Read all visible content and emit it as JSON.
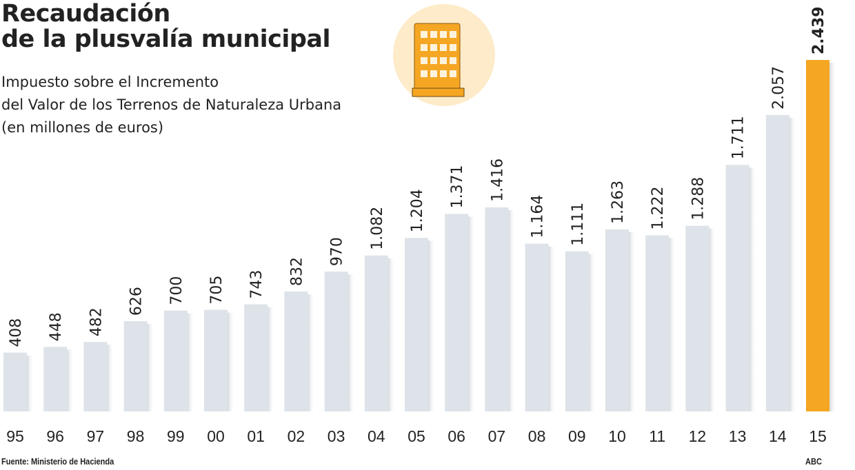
{
  "chart_data": {
    "type": "bar",
    "title": "Recaudación de la plusvalía municipal",
    "title_lines": [
      "Recaudación",
      "de la plusvalía municipal"
    ],
    "subtitle_lines": [
      "Impuesto sobre el Incremento",
      "del Valor de los Terrenos de Naturaleza Urbana",
      "(en millones de euros)"
    ],
    "categories": [
      "95",
      "96",
      "97",
      "98",
      "99",
      "00",
      "01",
      "02",
      "03",
      "04",
      "05",
      "06",
      "07",
      "08",
      "09",
      "10",
      "11",
      "12",
      "13",
      "14",
      "15"
    ],
    "values": [
      408,
      448,
      482,
      626,
      700,
      705,
      743,
      832,
      970,
      1082,
      1204,
      1371,
      1416,
      1164,
      1111,
      1263,
      1222,
      1288,
      1711,
      2057,
      2439
    ],
    "value_labels": [
      "408",
      "448",
      "482",
      "626",
      "700",
      "705",
      "743",
      "832",
      "970",
      "1.082",
      "1.204",
      "1.371",
      "1.416",
      "1.164",
      "1.111",
      "1.263",
      "1.222",
      "1.288",
      "1.711",
      "2.057",
      "2.439"
    ],
    "ylim": [
      0,
      2439
    ],
    "grid": false,
    "highlight_index": 20,
    "colors": {
      "bar": "#dde3e8",
      "highlight": "#f5a623",
      "icon_bg": "#fdebc9",
      "icon": "#f5a623"
    },
    "icon": "building-icon",
    "source": "Fuente: Ministerio de Hacienda",
    "credit": "ABC"
  }
}
